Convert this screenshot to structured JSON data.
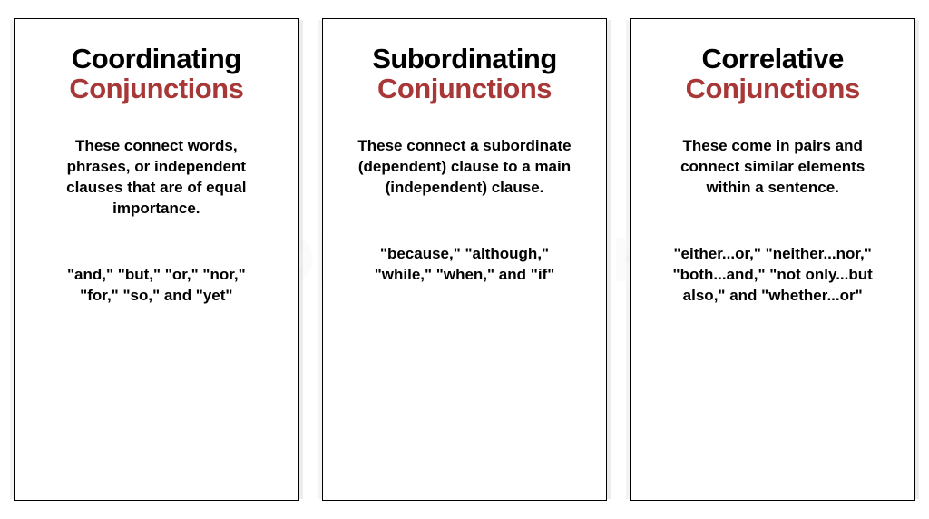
{
  "watermark": "PROENGLISHHUB",
  "colors": {
    "title_primary": "#000000",
    "title_accent": "#a83838",
    "body_text": "#000000",
    "background": "#ffffff",
    "border": "#000000"
  },
  "typography": {
    "title_fontsize": 31,
    "body_fontsize": 17,
    "font_weight": 900
  },
  "cards": [
    {
      "title_line1": "Coordinating",
      "title_line2": "Conjunctions",
      "description": "These connect words, phrases, or independent clauses that are of equal importance.",
      "examples": "\"and,\" \"but,\" \"or,\" \"nor,\" \"for,\" \"so,\" and \"yet\""
    },
    {
      "title_line1": "Subordinating",
      "title_line2": "Conjunctions",
      "description": "These connect a subordinate (dependent) clause to a main (independent) clause.",
      "examples": "\"because,\" \"although,\" \"while,\" \"when,\" and \"if\""
    },
    {
      "title_line1": "Correlative",
      "title_line2": "Conjunctions",
      "description": "These come in pairs and connect similar elements within a sentence.",
      "examples": "\"either...or,\" \"neither...nor,\" \"both...and,\" \"not only...but also,\" and \"whether...or\""
    }
  ]
}
